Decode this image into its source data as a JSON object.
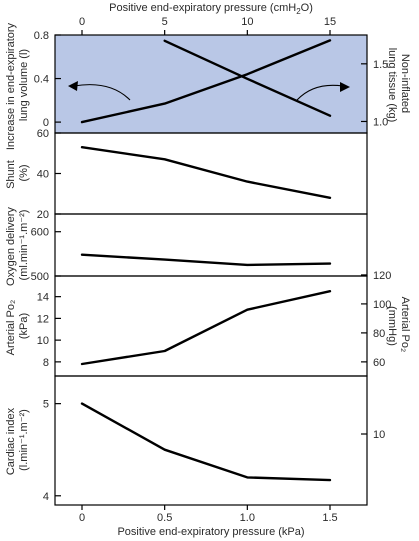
{
  "figure": {
    "top_axis_label": "Positive end-expiratory pressure (cmH",
    "top_axis_label_sub": "2",
    "top_axis_label_end": "O)",
    "bottom_axis_label": "Positive end-expiratory pressure (kPa)",
    "panel_bg": "#b9c7e6"
  },
  "chart_data": [
    {
      "type": "line",
      "panel": "lung-volume",
      "top_x_ticks": [
        "0",
        "5",
        "10",
        "15"
      ],
      "ylabel_left": "Increase in end-expiratory\nlung volume (l)",
      "ylabel_right": "Non-inflated\nlung tissue (kg)",
      "y_left_ticks": [
        "0",
        "0.4",
        "0.8"
      ],
      "y_right_ticks": [
        "1.0",
        "1.5"
      ],
      "ylim_left": [
        -0.1,
        0.8
      ],
      "ylim_right": [
        0.9,
        1.75
      ],
      "series": [
        {
          "axis": "left",
          "x": [
            0,
            0.5,
            1.0,
            1.5
          ],
          "y": [
            0.0,
            0.17,
            0.44,
            0.75
          ]
        },
        {
          "axis": "right",
          "x": [
            0.5,
            1.0,
            1.5
          ],
          "y": [
            1.7,
            1.37,
            1.05
          ]
        }
      ]
    },
    {
      "type": "line",
      "panel": "shunt",
      "ylabel_left": "Shunt\n(%)",
      "y_left_ticks": [
        "20",
        "40",
        "60"
      ],
      "ylim_left": [
        20,
        60
      ],
      "series": [
        {
          "x": [
            0,
            0.5,
            1.0,
            1.5
          ],
          "y": [
            53,
            47,
            36,
            28
          ]
        }
      ]
    },
    {
      "type": "line",
      "panel": "oxygen-delivery",
      "ylabel_left": "Oxygen delivery\n(ml.min⁻¹.m⁻²)",
      "y_left_ticks": [
        "500",
        "600"
      ],
      "ylim_left": [
        500,
        640
      ],
      "series": [
        {
          "x": [
            0,
            0.5,
            1.0,
            1.5
          ],
          "y": [
            548,
            537,
            525,
            528
          ]
        }
      ]
    },
    {
      "type": "line",
      "panel": "arterial-po2",
      "ylabel_left": "Arterial Po₂\n(kPa)",
      "ylabel_right": "Arterial Po₂\n(mmHg)",
      "y_left_ticks": [
        "8",
        "10",
        "12",
        "14"
      ],
      "y_right_ticks": [
        "60",
        "80",
        "100",
        "120"
      ],
      "ylim_left": [
        6.7,
        15.9
      ],
      "series": [
        {
          "x": [
            0,
            0.5,
            1.0,
            1.5
          ],
          "y": [
            7.8,
            9.0,
            12.8,
            14.5
          ]
        }
      ]
    },
    {
      "type": "line",
      "panel": "cardiac-index",
      "ylabel_left": "Cardiac index\n(l.min⁻¹.m⁻²)",
      "y_left_ticks": [
        "4",
        "5"
      ],
      "y_right_ticks": [
        "10"
      ],
      "ylim_left": [
        3.9,
        5.3
      ],
      "x_ticks": [
        "0",
        "0.5",
        "1.0",
        "1.5"
      ],
      "series": [
        {
          "x": [
            0,
            0.5,
            1.0,
            1.5
          ],
          "y": [
            5.0,
            4.5,
            4.2,
            4.17
          ]
        }
      ]
    }
  ]
}
